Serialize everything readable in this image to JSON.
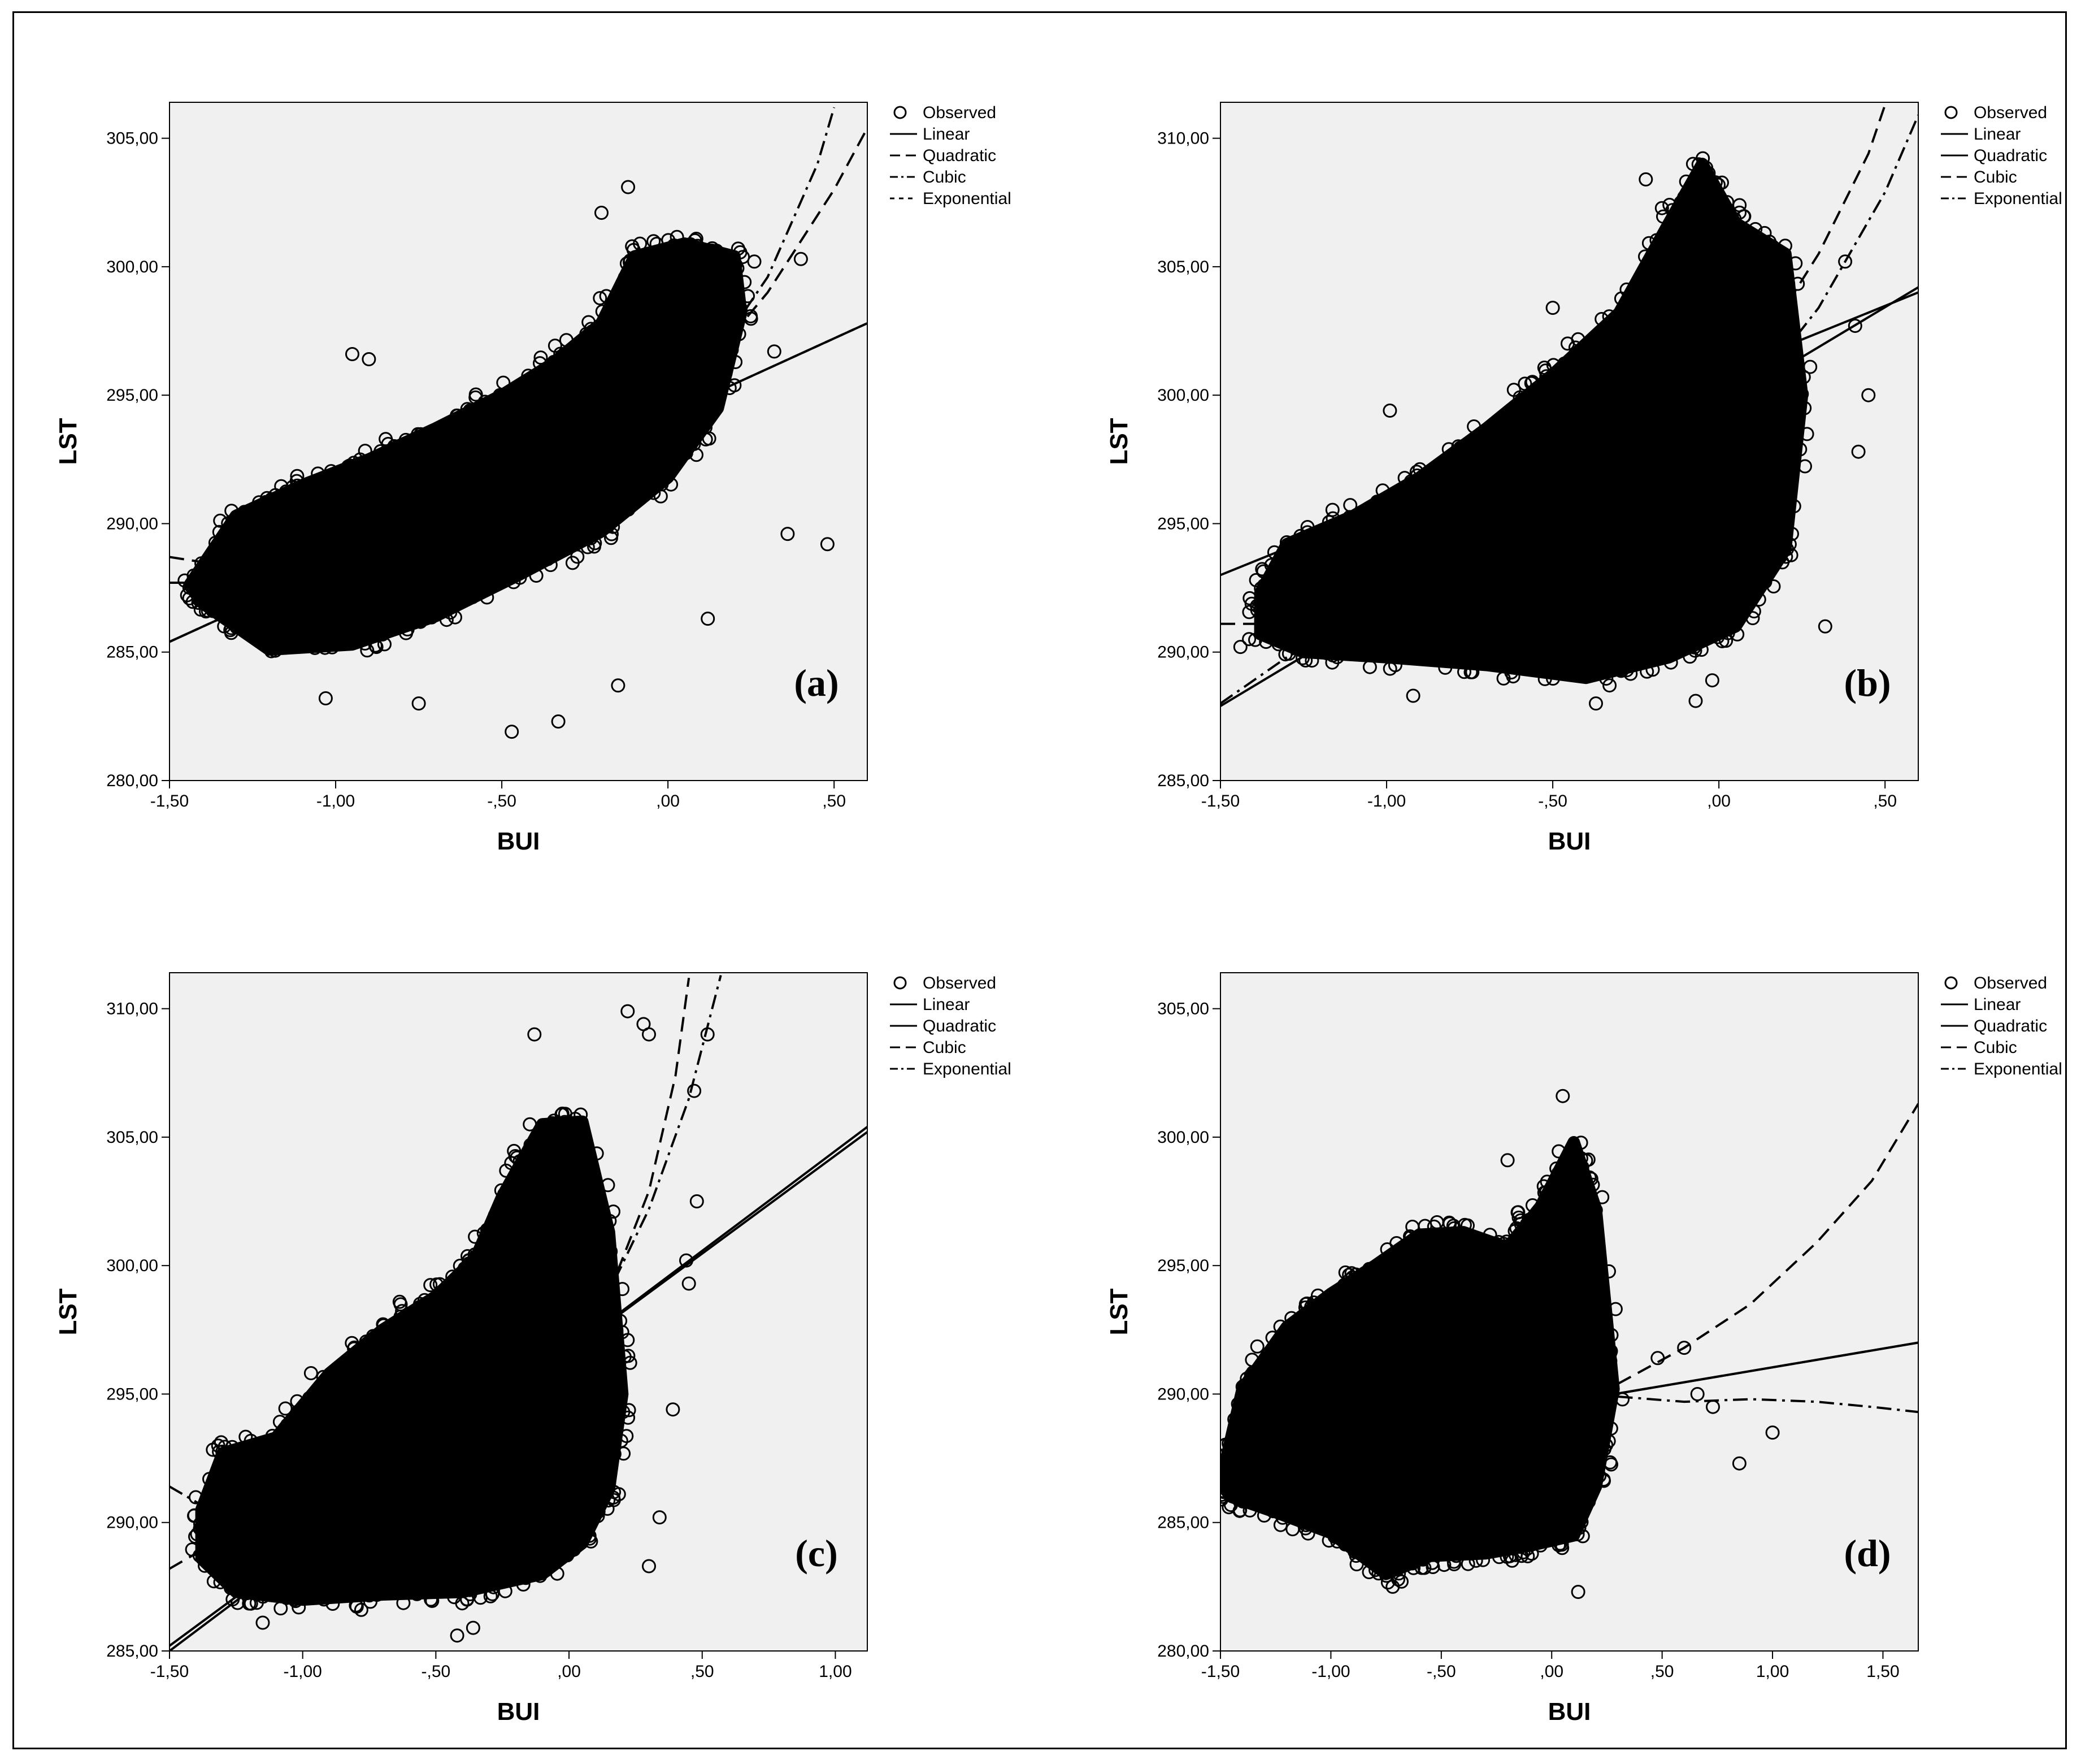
{
  "chart_data": [
    {
      "type": "scatter",
      "title": "(a)",
      "xlabel": "BUI",
      "ylabel": "LST",
      "xlim": [
        -1.5,
        0.6
      ],
      "ylim": [
        280,
        306.4
      ],
      "xticks": [
        -1.5,
        -1.0,
        -0.5,
        0.0,
        0.5
      ],
      "xticklabels": [
        "-1,50",
        "-1,00",
        "-,50",
        ",00",
        ",50"
      ],
      "yticks": [
        280,
        285,
        290,
        295,
        300,
        305
      ],
      "yticklabels": [
        "280,00",
        "285,00",
        "290,00",
        "295,00",
        "300,00",
        "305,00"
      ],
      "legend": {
        "position": "right",
        "entries": [
          {
            "label": "Observed",
            "style": "circle"
          },
          {
            "label": "Linear",
            "style": "solid"
          },
          {
            "label": "Quadratic",
            "style": "longdash"
          },
          {
            "label": "Cubic",
            "style": "dashdot"
          },
          {
            "label": "Exponential",
            "style": "shortdash"
          }
        ]
      },
      "series": [
        {
          "name": "Observed",
          "cloud": {
            "x": [
              -1.44,
              -1.3,
              -1.1,
              -0.9,
              -0.7,
              -0.5,
              -0.35,
              -0.2,
              -0.1,
              0.05,
              0.2,
              0.22,
              0.15,
              0.0,
              -0.2,
              -0.45,
              -0.7,
              -0.95,
              -1.2,
              -1.4
            ],
            "y": [
              287.6,
              290.3,
              291.5,
              292.5,
              293.7,
              295.0,
              296.2,
              297.8,
              300.4,
              300.9,
              300.4,
              298.2,
              294.5,
              291.8,
              289.7,
              288.0,
              286.4,
              285.3,
              285.1,
              286.9
            ]
          },
          "outliers": {
            "x": [
              -0.47,
              -0.33,
              -0.75,
              -1.03,
              -0.15,
              0.4,
              0.32,
              0.36,
              0.48,
              0.26,
              0.12,
              -0.12,
              -0.9,
              -0.95,
              -0.2,
              0.16
            ],
            "y": [
              281.9,
              282.3,
              283.0,
              283.2,
              283.7,
              300.3,
              296.7,
              289.6,
              289.2,
              300.2,
              286.3,
              303.1,
              296.4,
              296.6,
              302.1,
              295.8
            ]
          }
        },
        {
          "name": "Linear",
          "x": [
            -1.5,
            0.6
          ],
          "y": [
            285.4,
            297.8
          ]
        },
        {
          "name": "Quadratic",
          "x": [
            -1.5,
            -1.3,
            -1.0,
            -0.7,
            -0.4,
            -0.1,
            0.1,
            0.3,
            0.5,
            0.6
          ],
          "y": [
            288.7,
            288.3,
            288.6,
            289.6,
            291.3,
            293.8,
            295.9,
            299.0,
            303.0,
            305.4
          ]
        },
        {
          "name": "Cubic",
          "x": [
            -1.5,
            -1.3,
            -1.0,
            -0.7,
            -0.4,
            -0.1,
            0.1,
            0.3,
            0.45,
            0.5
          ],
          "y": [
            287.7,
            287.7,
            288.6,
            289.7,
            291.1,
            293.4,
            295.8,
            299.6,
            304.0,
            306.2
          ]
        },
        {
          "name": "Exponential",
          "x": [
            -1.5,
            0.6
          ],
          "y": [
            285.4,
            297.8
          ]
        }
      ]
    },
    {
      "type": "scatter",
      "title": "(b)",
      "xlabel": "BUI",
      "ylabel": "LST",
      "xlim": [
        -1.5,
        0.6
      ],
      "ylim": [
        285,
        311.4
      ],
      "xticks": [
        -1.5,
        -1.0,
        -0.5,
        0.0,
        0.5
      ],
      "xticklabels": [
        "-1,50",
        "-1,00",
        "-,50",
        ",00",
        ",50"
      ],
      "yticks": [
        285,
        290,
        295,
        300,
        305,
        310
      ],
      "yticklabels": [
        "285,00",
        "290,00",
        "295,00",
        "300,00",
        "305,00",
        "310,00"
      ],
      "legend": {
        "position": "right",
        "entries": [
          {
            "label": "Observed",
            "style": "circle"
          },
          {
            "label": "Linear",
            "style": "solid"
          },
          {
            "label": "Quadratic",
            "style": "solid"
          },
          {
            "label": "Cubic",
            "style": "longdash"
          },
          {
            "label": "Exponential",
            "style": "dashdot"
          }
        ]
      },
      "series": [
        {
          "name": "Observed",
          "cloud": {
            "x": [
              -1.38,
              -1.3,
              -1.1,
              -0.9,
              -0.7,
              -0.5,
              -0.3,
              -0.15,
              -0.05,
              0.05,
              0.2,
              0.25,
              0.2,
              0.05,
              -0.15,
              -0.4,
              -0.7,
              -1.0,
              -1.25,
              -1.38
            ],
            "y": [
              292.3,
              294.2,
              295.3,
              296.8,
              298.7,
              300.8,
              303.2,
              306.7,
              309.0,
              306.7,
              305.5,
              300.0,
              294.0,
              291.0,
              289.8,
              289.0,
              289.5,
              289.8,
              290.0,
              290.7
            ]
          },
          "outliers": {
            "x": [
              -1.32,
              -1.44,
              -0.99,
              -0.9,
              -0.92,
              -0.5,
              -0.37,
              -0.07,
              0.38,
              0.41,
              0.45,
              0.42,
              -0.22,
              -0.35,
              0.32,
              0.22,
              -0.02
            ],
            "y": [
              290.7,
              290.2,
              299.4,
              296.6,
              288.3,
              303.4,
              288.0,
              288.1,
              305.2,
              302.7,
              300.0,
              297.8,
              308.4,
              299.3,
              291.0,
              294.6,
              288.9
            ]
          }
        },
        {
          "name": "Linear",
          "x": [
            -1.5,
            0.6
          ],
          "y": [
            287.9,
            304.2
          ]
        },
        {
          "name": "Quadratic",
          "x": [
            -1.5,
            0.6
          ],
          "y": [
            293.0,
            304.0
          ]
        },
        {
          "name": "Cubic",
          "x": [
            -1.5,
            -1.3,
            -1.0,
            -0.7,
            -0.4,
            -0.1,
            0.1,
            0.3,
            0.45,
            0.5
          ],
          "y": [
            291.1,
            291.1,
            292.4,
            293.9,
            295.7,
            298.6,
            301.4,
            305.5,
            309.4,
            311.3
          ]
        },
        {
          "name": "Exponential",
          "x": [
            -1.5,
            -1.3,
            -1.0,
            -0.7,
            -0.4,
            -0.1,
            0.1,
            0.3,
            0.5,
            0.6
          ],
          "y": [
            288.0,
            289.8,
            291.8,
            293.6,
            295.5,
            298.0,
            300.1,
            303.4,
            307.9,
            310.9
          ]
        }
      ]
    },
    {
      "type": "scatter",
      "title": "(c)",
      "xlabel": "BUI",
      "ylabel": "LST",
      "xlim": [
        -1.5,
        1.12
      ],
      "ylim": [
        285,
        311.4
      ],
      "xticks": [
        -1.5,
        -1.0,
        -0.5,
        0.0,
        0.5,
        1.0
      ],
      "xticklabels": [
        "-1,50",
        "-1,00",
        "-,50",
        ",00",
        ",50",
        "1,00"
      ],
      "yticks": [
        285,
        290,
        295,
        300,
        305,
        310
      ],
      "yticklabels": [
        "285,00",
        "290,00",
        "295,00",
        "300,00",
        "305,00",
        "310,00"
      ],
      "legend": {
        "position": "right",
        "entries": [
          {
            "label": "Observed",
            "style": "circle"
          },
          {
            "label": "Linear",
            "style": "solid"
          },
          {
            "label": "Quadratic",
            "style": "solid"
          },
          {
            "label": "Cubic",
            "style": "longdash"
          },
          {
            "label": "Exponential",
            "style": "dashdot"
          }
        ]
      },
      "series": [
        {
          "name": "Observed",
          "cloud": {
            "x": [
              -1.38,
              -1.3,
              -1.1,
              -0.9,
              -0.7,
              -0.5,
              -0.35,
              -0.25,
              -0.1,
              0.05,
              0.15,
              0.2,
              0.15,
              0.05,
              -0.1,
              -0.4,
              -0.7,
              -1.0,
              -1.25,
              -1.38
            ],
            "y": [
              290.5,
              292.7,
              293.3,
              295.8,
              297.5,
              298.8,
              300.3,
              302.7,
              305.5,
              305.6,
              301.3,
              295.0,
              291.3,
              289.2,
              288.0,
              287.3,
              287.2,
              287.0,
              287.3,
              288.6
            ]
          },
          "outliers": {
            "x": [
              -0.42,
              -0.36,
              -1.15,
              -0.78,
              -0.13,
              0.22,
              0.28,
              0.3,
              0.52,
              0.47,
              0.48,
              0.44,
              0.39,
              0.45,
              0.34,
              0.3
            ],
            "y": [
              285.6,
              285.9,
              286.1,
              286.6,
              309.0,
              309.9,
              309.4,
              309.0,
              309.0,
              306.8,
              302.5,
              300.2,
              294.4,
              299.3,
              290.2,
              288.3
            ]
          }
        },
        {
          "name": "Linear",
          "x": [
            -1.5,
            1.12
          ],
          "y": [
            285.0,
            305.4
          ]
        },
        {
          "name": "Quadratic",
          "x": [
            -1.5,
            1.12
          ],
          "y": [
            285.2,
            305.2
          ]
        },
        {
          "name": "Cubic",
          "x": [
            -1.5,
            -1.3,
            -1.0,
            -0.7,
            -0.4,
            -0.1,
            0.1,
            0.3,
            0.4,
            0.45
          ],
          "y": [
            288.2,
            289.4,
            290.3,
            291.2,
            292.5,
            294.6,
            297.6,
            302.9,
            307.4,
            311.2
          ]
        },
        {
          "name": "Exponential",
          "x": [
            -1.5,
            -1.35,
            -1.1,
            -0.8,
            -0.5,
            -0.2,
            0.1,
            0.3,
            0.45,
            0.57
          ],
          "y": [
            291.4,
            290.5,
            290.0,
            290.8,
            292.1,
            294.3,
            297.9,
            302.2,
            306.5,
            311.3
          ]
        }
      ]
    },
    {
      "type": "scatter",
      "title": "(d)",
      "xlabel": "BUI",
      "ylabel": "LST",
      "xlim": [
        -1.5,
        1.66
      ],
      "ylim": [
        280,
        306.4
      ],
      "xticks": [
        -1.5,
        -1.0,
        -0.5,
        0.0,
        0.5,
        1.0,
        1.5
      ],
      "xticklabels": [
        "-1,50",
        "-1,00",
        "-,50",
        ",00",
        ",50",
        "1,00",
        "1,50"
      ],
      "yticks": [
        280,
        285,
        290,
        295,
        300,
        305
      ],
      "yticklabels": [
        "280,00",
        "285,00",
        "290,00",
        "295,00",
        "300,00",
        "305,00"
      ],
      "legend": {
        "position": "right",
        "entries": [
          {
            "label": "Observed",
            "style": "circle"
          },
          {
            "label": "Linear",
            "style": "solid"
          },
          {
            "label": "Quadratic",
            "style": "solid"
          },
          {
            "label": "Cubic",
            "style": "longdash"
          },
          {
            "label": "Exponential",
            "style": "dashdot"
          }
        ]
      },
      "series": [
        {
          "name": "Observed",
          "cloud": {
            "x": [
              -1.5,
              -1.4,
              -1.2,
              -1.0,
              -0.8,
              -0.6,
              -0.4,
              -0.2,
              -0.05,
              0.1,
              0.2,
              0.28,
              0.2,
              0.1,
              -0.1,
              -0.3,
              -0.55,
              -0.75,
              -1.0,
              -1.25,
              -1.45
            ],
            "y": [
              286.5,
              290.2,
              292.6,
              293.9,
              295.0,
              296.2,
              296.3,
              295.7,
              297.3,
              299.8,
              297.2,
              290.2,
              286.4,
              284.5,
              284.1,
              283.8,
              283.7,
              283.0,
              284.6,
              285.4,
              286.0
            ]
          },
          "outliers": {
            "x": [
              -0.72,
              -0.68,
              0.12,
              0.05,
              -0.2,
              0.48,
              0.66,
              0.85,
              1.0,
              0.73,
              0.6
            ],
            "y": [
              282.5,
              282.7,
              282.3,
              301.6,
              299.1,
              291.4,
              290.0,
              287.3,
              288.5,
              289.5,
              291.8
            ]
          }
        },
        {
          "name": "Linear",
          "x": [
            -1.5,
            1.66
          ],
          "y": [
            287.4,
            292.0
          ]
        },
        {
          "name": "Quadratic",
          "x": [
            -1.5,
            1.66
          ],
          "y": [
            287.4,
            292.0
          ]
        },
        {
          "name": "Cubic",
          "x": [
            0.3,
            0.6,
            0.9,
            1.2,
            1.45,
            1.66
          ],
          "y": [
            290.4,
            291.8,
            293.5,
            295.9,
            298.3,
            301.3
          ]
        },
        {
          "name": "Exponential",
          "x": [
            0.3,
            0.6,
            0.9,
            1.2,
            1.45,
            1.66
          ],
          "y": [
            289.9,
            289.7,
            289.8,
            289.7,
            289.5,
            289.3
          ]
        }
      ]
    }
  ]
}
